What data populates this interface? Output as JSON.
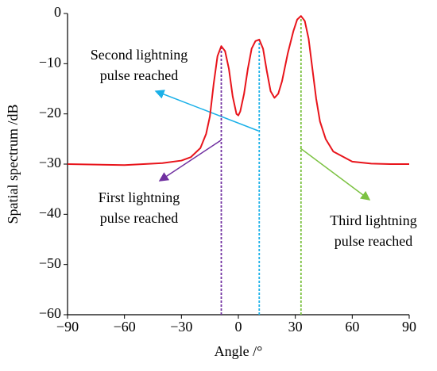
{
  "chart_data": {
    "type": "line",
    "xlabel": "Angle /°",
    "ylabel": "Spatial spectrum /dB",
    "xlim": [
      -90,
      90
    ],
    "ylim": [
      -60,
      0
    ],
    "xticks": [
      {
        "value": -90,
        "label": "−90"
      },
      {
        "value": -60,
        "label": "−60"
      },
      {
        "value": -30,
        "label": "−30"
      },
      0,
      30,
      60,
      90
    ],
    "yticks": [
      0,
      {
        "value": -10,
        "label": "−10"
      },
      {
        "value": -20,
        "label": "−20"
      },
      {
        "value": -30,
        "label": "−30"
      },
      {
        "value": -40,
        "label": "−40"
      },
      {
        "value": -50,
        "label": "−50"
      },
      {
        "value": -60,
        "label": "−60"
      }
    ],
    "series": [
      {
        "color": "#e8141b",
        "x": [
          -90,
          -60,
          -40,
          -30,
          -25,
          -20,
          -17,
          -15,
          -13,
          -11,
          -9,
          -7,
          -5,
          -3,
          -1,
          0,
          1,
          3,
          5,
          7,
          9,
          11,
          13,
          15,
          17,
          19,
          21,
          23,
          26,
          29,
          31,
          33,
          35,
          37,
          39,
          41,
          43,
          46,
          50,
          60,
          70,
          80,
          90
        ],
        "values": [
          -30,
          -30.2,
          -29.8,
          -29.3,
          -28.6,
          -26.8,
          -24,
          -20.5,
          -14,
          -8.5,
          -6.5,
          -7.5,
          -11,
          -16.5,
          -20,
          -20.3,
          -19.5,
          -16,
          -11,
          -7,
          -5.5,
          -5.2,
          -7,
          -11.5,
          -15.5,
          -16.8,
          -16,
          -13.5,
          -8,
          -3.5,
          -1.2,
          -0.5,
          -1.5,
          -5,
          -11,
          -17,
          -21.5,
          -25,
          -27.5,
          -29.5,
          -29.9,
          -30,
          -30
        ]
      }
    ],
    "markers": [
      {
        "x": -9,
        "top": -6.5,
        "color": "#7030a0"
      },
      {
        "x": 11,
        "top": -5.2,
        "color": "#1ab0e8"
      },
      {
        "x": 33,
        "top": -0.5,
        "color": "#7cc242"
      }
    ],
    "annotations": [
      {
        "lines": [
          "Second lightning",
          "pulse reached"
        ]
      },
      {
        "lines": [
          "First lightning",
          "pulse reached"
        ]
      },
      {
        "lines": [
          "Third lightning",
          "pulse reached"
        ]
      }
    ]
  }
}
